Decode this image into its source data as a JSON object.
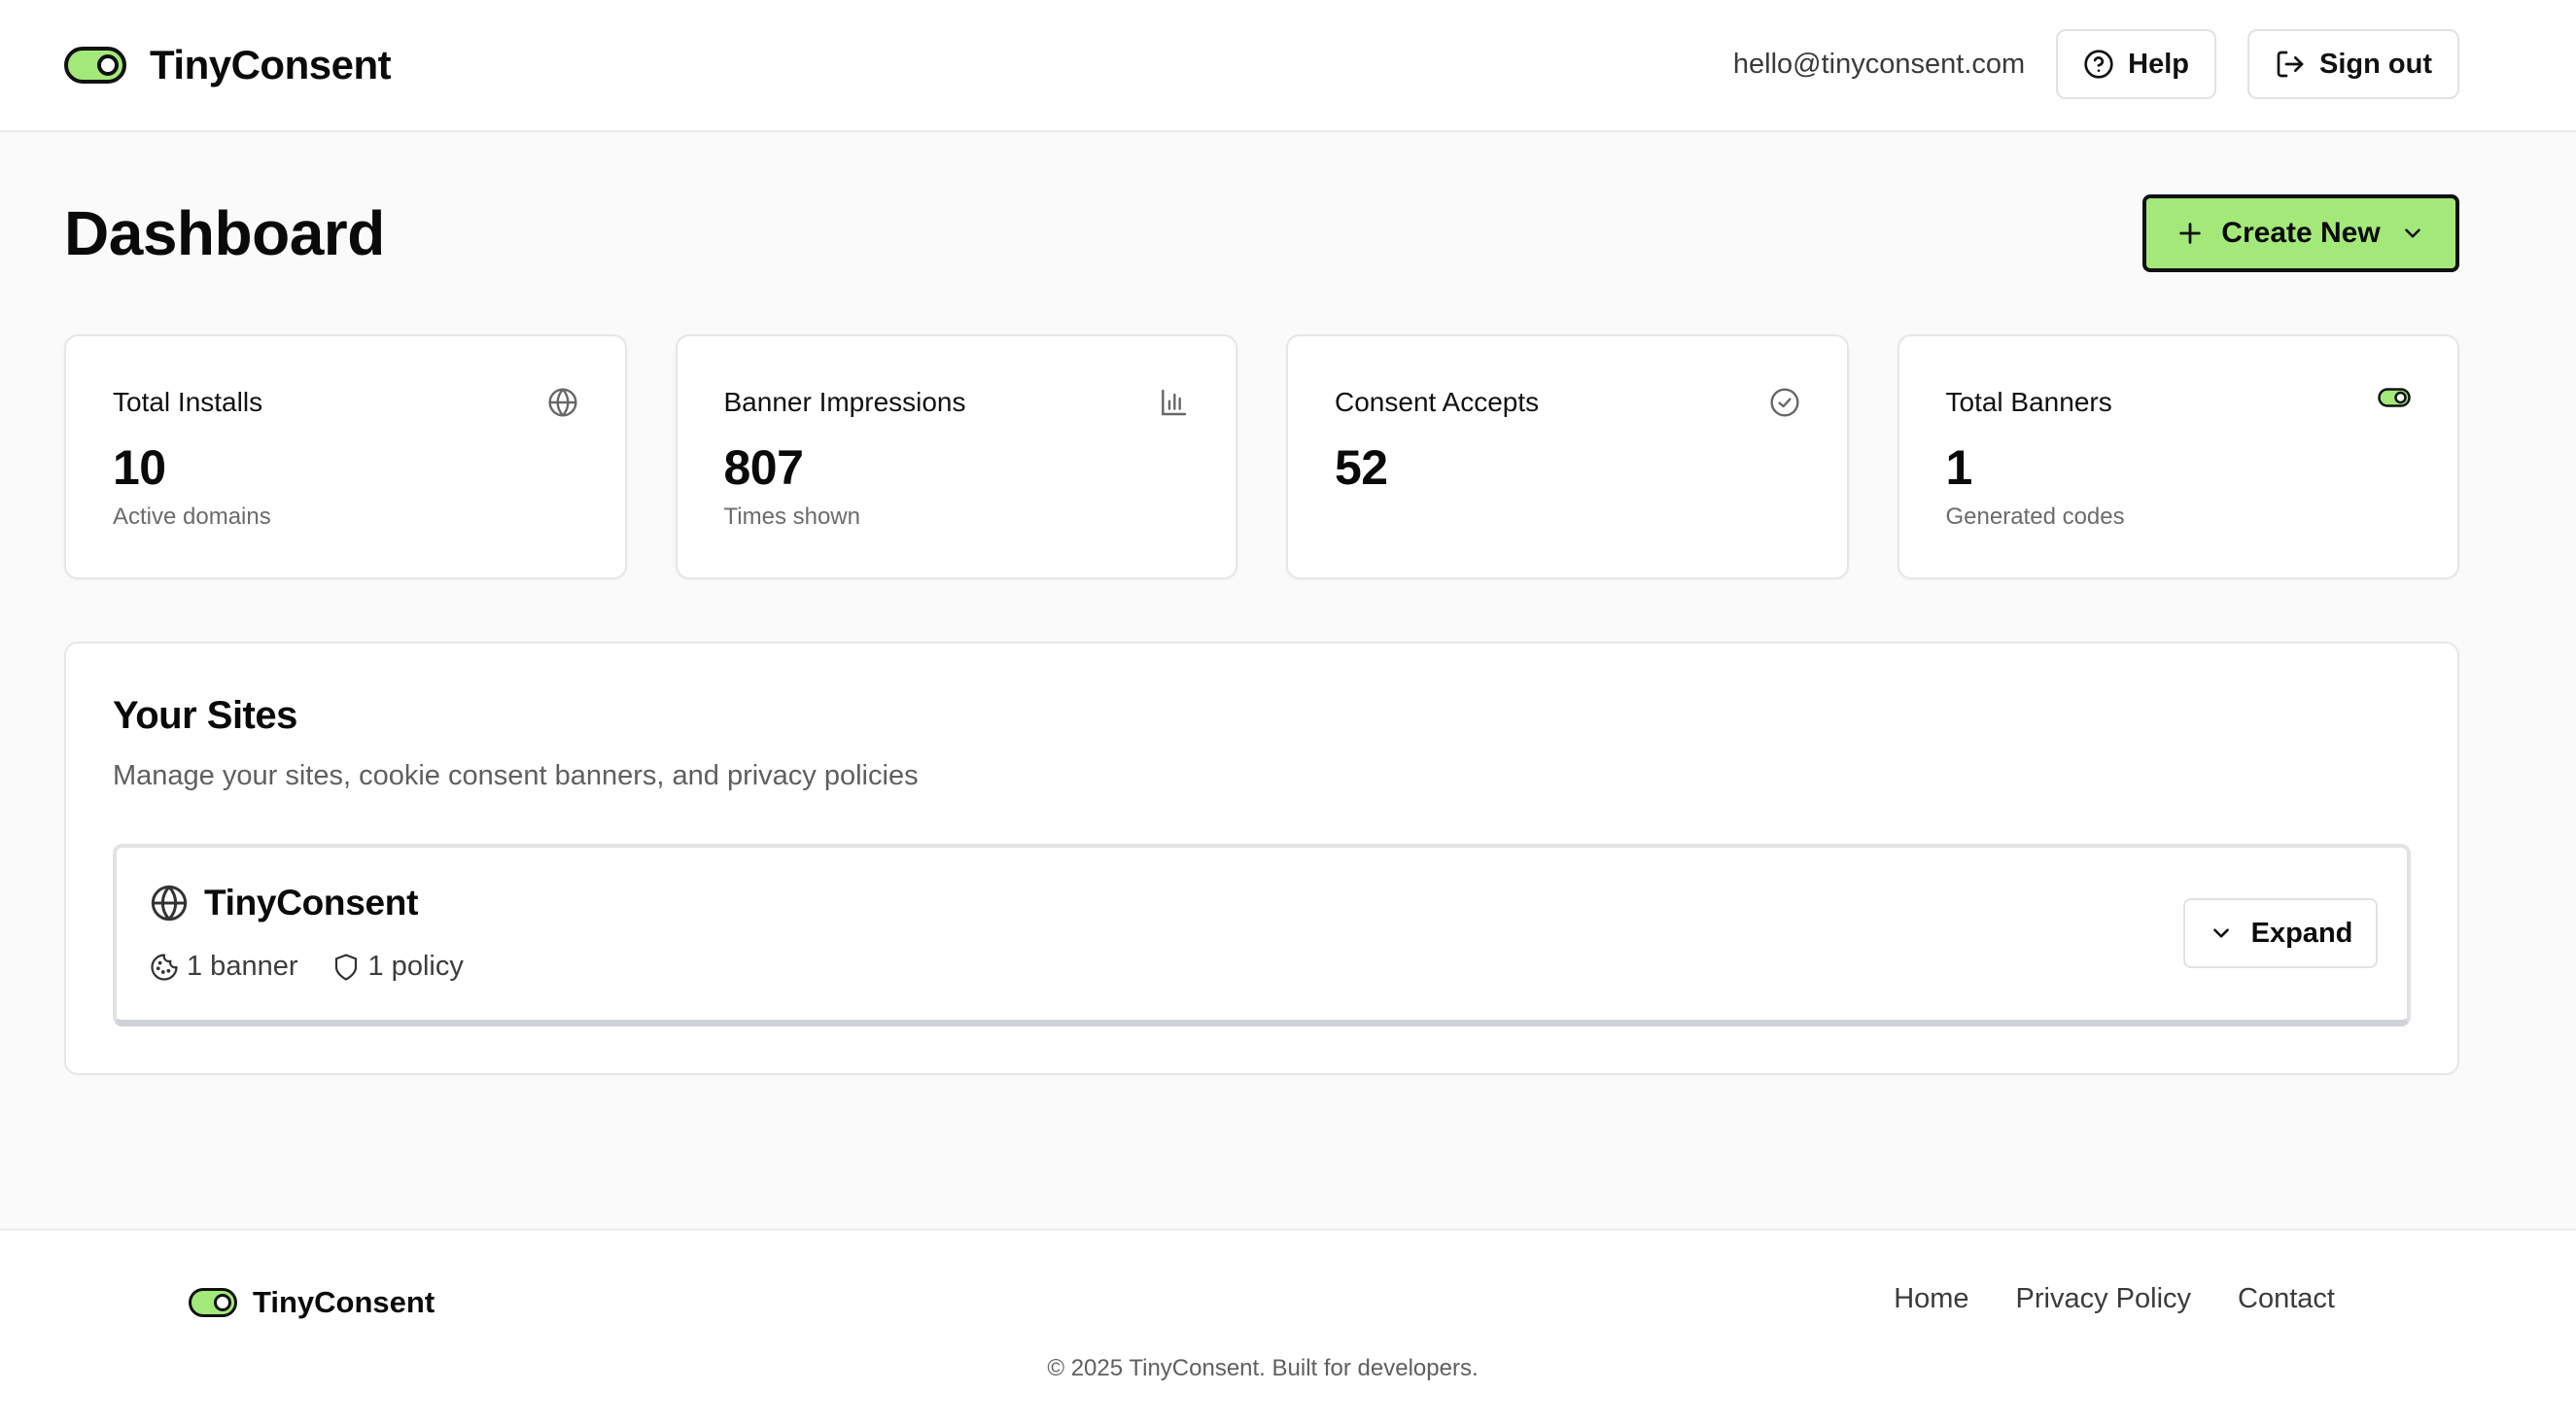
{
  "app": {
    "brand": "TinyConsent",
    "accent_color": "#a3e97a"
  },
  "header": {
    "email": "hello@tinyconsent.com",
    "help_label": "Help",
    "signout_label": "Sign out",
    "help_icon": "help-circle-icon",
    "signout_icon": "log-out-icon"
  },
  "main": {
    "title": "Dashboard",
    "create_label": "Create New"
  },
  "stats": [
    {
      "label": "Total Installs",
      "value": "10",
      "sub": "Active domains",
      "icon": "globe-icon"
    },
    {
      "label": "Banner Impressions",
      "value": "807",
      "sub": "Times shown",
      "icon": "bar-chart-icon"
    },
    {
      "label": "Consent Accepts",
      "value": "52",
      "sub": "",
      "icon": "check-circle-icon"
    },
    {
      "label": "Total Banners",
      "value": "1",
      "sub": "Generated codes",
      "icon": "toggle-icon"
    }
  ],
  "sites": {
    "title": "Your Sites",
    "subtitle": "Manage your sites, cookie consent banners, and privacy policies",
    "items": [
      {
        "name": "TinyConsent",
        "banners": "1 banner",
        "policies": "1 policy",
        "expand_label": "Expand"
      }
    ]
  },
  "footer": {
    "brand": "TinyConsent",
    "links": [
      "Home",
      "Privacy Policy",
      "Contact"
    ],
    "copyright": "© 2025 TinyConsent. Built for developers."
  }
}
